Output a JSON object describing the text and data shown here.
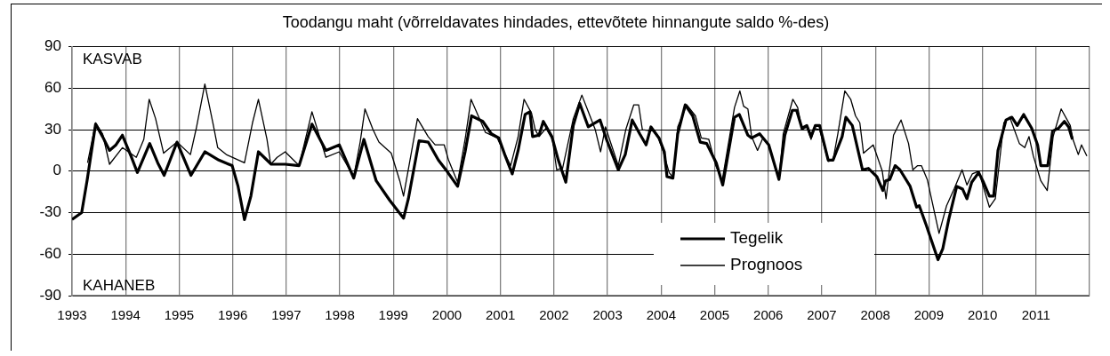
{
  "chart_data": {
    "type": "line",
    "title": "Toodangu maht (võrreldavates hindades, ettevõtete hinnangute saldo %-des)",
    "annotations": [
      "KASVAB",
      "KAHANEB"
    ],
    "xlim": [
      1993,
      2012
    ],
    "xticks": [
      1993,
      1994,
      1995,
      1996,
      1997,
      1998,
      1999,
      2000,
      2001,
      2002,
      2003,
      2004,
      2005,
      2006,
      2007,
      2008,
      2009,
      2010,
      2011,
      {
        "value": 2012,
        "label": null
      }
    ],
    "ylim": [
      -90,
      90
    ],
    "yticks": [
      -90,
      -60,
      -30,
      0,
      30,
      60,
      90
    ],
    "grid": true,
    "legend": "bottom right",
    "marker": "none",
    "line_style": "solid",
    "series": [
      {
        "name": "Tegelik",
        "color": "#000000",
        "x": [
          1993.0,
          1993.18,
          1993.28,
          1993.44,
          1993.57,
          1993.7,
          1993.82,
          1993.94,
          1994.1,
          1994.22,
          1994.45,
          1994.6,
          1994.72,
          1994.96,
          1995.22,
          1995.48,
          1995.74,
          1995.99,
          1996.1,
          1996.22,
          1996.34,
          1996.48,
          1996.72,
          1996.98,
          1997.24,
          1997.48,
          1997.74,
          1997.99,
          1998.26,
          1998.45,
          1998.68,
          1998.93,
          1999.19,
          1999.28,
          1999.48,
          1999.65,
          1999.84,
          2000.0,
          2000.2,
          2000.34,
          2000.46,
          2000.67,
          2000.83,
          2000.97,
          2001.08,
          2001.22,
          2001.33,
          2001.46,
          2001.55,
          2001.6,
          2001.72,
          2001.8,
          2001.96,
          2002.08,
          2002.22,
          2002.36,
          2002.48,
          2002.64,
          2002.86,
          2002.98,
          2003.2,
          2003.33,
          2003.46,
          2003.6,
          2003.72,
          2003.81,
          2003.96,
          2004.06,
          2004.11,
          2004.22,
          2004.31,
          2004.45,
          2004.59,
          2004.73,
          2004.85,
          2005.03,
          2005.15,
          2005.37,
          2005.46,
          2005.62,
          2005.69,
          2005.84,
          2006.01,
          2006.2,
          2006.31,
          2006.45,
          2006.53,
          2006.63,
          2006.72,
          2006.8,
          2006.88,
          2006.96,
          2007.12,
          2007.21,
          2007.38,
          2007.45,
          2007.57,
          2007.76,
          2007.87,
          2008.03,
          2008.14,
          2008.19,
          2008.27,
          2008.37,
          2008.46,
          2008.65,
          2008.77,
          2008.82,
          2008.95,
          2009.17,
          2009.26,
          2009.37,
          2009.52,
          2009.63,
          2009.71,
          2009.8,
          2009.93,
          2010.02,
          2010.13,
          2010.21,
          2010.29,
          2010.44,
          2010.55,
          2010.65,
          2010.77,
          2010.92,
          2011.03,
          2011.09,
          2011.22,
          2011.31,
          2011.42,
          2011.53,
          2011.61,
          2011.68
        ],
        "values": [
          -35,
          -30,
          -7,
          34,
          25,
          15,
          19,
          26,
          11,
          -1,
          20,
          6,
          -3,
          21,
          -3,
          14,
          8,
          4,
          -11,
          -35,
          -18,
          14,
          5,
          5,
          4,
          34,
          15,
          19,
          -5,
          23,
          -7,
          -21,
          -34,
          -20,
          22,
          21,
          8,
          0,
          -11,
          14,
          40,
          36,
          27,
          24,
          12,
          -2,
          15,
          41,
          43,
          25,
          26,
          36,
          25,
          8,
          -8,
          33,
          49,
          32,
          37,
          23,
          1,
          12,
          37,
          27,
          19,
          32,
          24,
          14,
          -4,
          -5,
          27,
          48,
          40,
          21,
          20,
          6,
          -10,
          39,
          41,
          26,
          24,
          27,
          19,
          -6,
          26,
          44,
          44,
          31,
          33,
          25,
          33,
          33,
          8,
          8,
          25,
          39,
          33,
          1,
          2,
          -4,
          -14,
          -7,
          -6,
          4,
          1,
          -11,
          -26,
          -25,
          -39,
          -64,
          -56,
          -35,
          -11,
          -13,
          -20,
          -8,
          -1,
          -8,
          -18,
          -18,
          15,
          37,
          39,
          33,
          41,
          31,
          19,
          4,
          4,
          29,
          31,
          36,
          32,
          23
        ]
      },
      {
        "name": "Prognoos",
        "color": "#000000",
        "x": [
          1993.29,
          1993.44,
          1993.57,
          1993.7,
          1993.94,
          1994.2,
          1994.34,
          1994.44,
          1994.56,
          1994.71,
          1994.96,
          1995.21,
          1995.32,
          1995.48,
          1995.64,
          1995.72,
          1995.88,
          1996.22,
          1996.37,
          1996.48,
          1996.64,
          1996.71,
          1996.83,
          1996.98,
          1997.24,
          1997.48,
          1997.74,
          1997.99,
          1998.26,
          1998.38,
          1998.47,
          1998.62,
          1998.73,
          1998.96,
          1999.12,
          1999.19,
          1999.45,
          1999.65,
          1999.78,
          1999.95,
          2000.03,
          2000.2,
          2000.34,
          2000.45,
          2000.72,
          2000.94,
          2001.06,
          2001.19,
          2001.33,
          2001.44,
          2001.58,
          2001.65,
          2001.72,
          2001.85,
          2001.97,
          2002.05,
          2002.16,
          2002.36,
          2002.52,
          2002.64,
          2002.77,
          2002.87,
          2002.96,
          2003.2,
          2003.34,
          2003.49,
          2003.58,
          2003.65,
          2003.85,
          2003.96,
          2004.04,
          2004.15,
          2004.23,
          2004.31,
          2004.48,
          2004.64,
          2004.75,
          2004.89,
          2005.02,
          2005.14,
          2005.37,
          2005.47,
          2005.54,
          2005.62,
          2005.69,
          2005.8,
          2005.9,
          2006.01,
          2006.2,
          2006.28,
          2006.46,
          2006.55,
          2006.63,
          2006.72,
          2006.8,
          2006.86,
          2006.96,
          2007.12,
          2007.21,
          2007.3,
          2007.43,
          2007.54,
          2007.63,
          2007.71,
          2007.78,
          2007.96,
          2008.13,
          2008.2,
          2008.34,
          2008.48,
          2008.62,
          2008.7,
          2008.79,
          2008.86,
          2008.97,
          2009.19,
          2009.33,
          2009.47,
          2009.62,
          2009.71,
          2009.81,
          2009.93,
          2010.13,
          2010.24,
          2010.4,
          2010.51,
          2010.69,
          2010.79,
          2010.87,
          2010.95,
          2011.09,
          2011.21,
          2011.32,
          2011.47,
          2011.64,
          2011.69,
          2011.79,
          2011.85,
          2011.95
        ],
        "values": [
          6,
          35,
          27,
          5,
          17,
          10,
          23,
          52,
          38,
          13,
          21,
          12,
          31,
          63,
          33,
          17,
          12,
          6,
          35,
          52,
          23,
          5,
          10,
          14,
          4,
          43,
          10,
          14,
          -4,
          21,
          45,
          30,
          21,
          13,
          -7,
          -18,
          38,
          25,
          19,
          19,
          8,
          -8,
          23,
          52,
          28,
          24,
          14,
          4,
          25,
          52,
          42,
          30,
          25,
          31,
          23,
          1,
          2,
          38,
          55,
          43,
          30,
          14,
          32,
          4,
          30,
          48,
          48,
          30,
          29,
          23,
          14,
          -1,
          -5,
          32,
          48,
          40,
          24,
          23,
          4,
          -7,
          46,
          58,
          47,
          45,
          25,
          15,
          24,
          19,
          -6,
          27,
          52,
          46,
          30,
          32,
          23,
          31,
          30,
          7,
          8,
          27,
          58,
          52,
          40,
          35,
          13,
          19,
          0,
          -20,
          26,
          37,
          20,
          1,
          4,
          4,
          -6,
          -45,
          -25,
          -13,
          1,
          -10,
          -2,
          0,
          -26,
          -20,
          35,
          39,
          20,
          17,
          25,
          11,
          -7,
          -14,
          25,
          45,
          33,
          23,
          12,
          19,
          11
        ]
      }
    ]
  }
}
